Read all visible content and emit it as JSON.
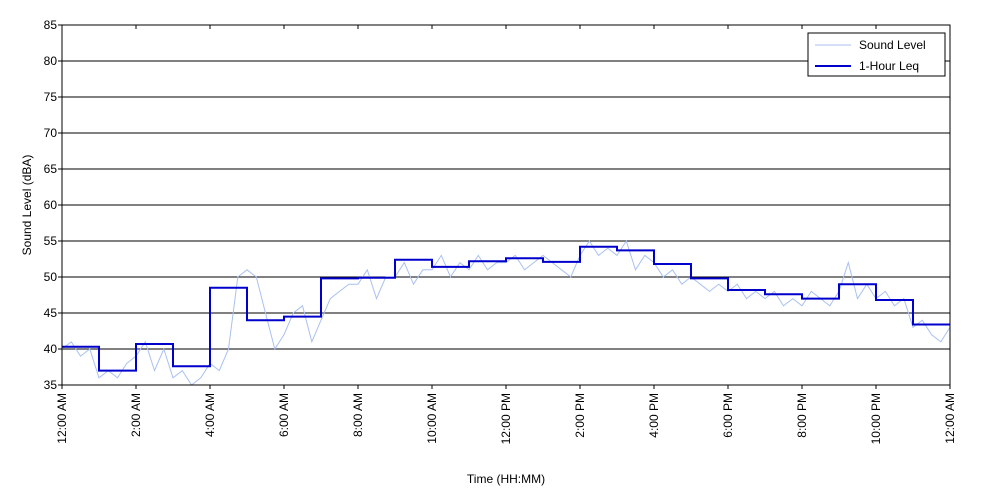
{
  "chart_data": {
    "type": "line",
    "title": "",
    "xlabel": "Time (HH:MM)",
    "ylabel": "Sound Level (dBA)",
    "xlim": [
      0,
      24
    ],
    "ylim": [
      35,
      85
    ],
    "yticks": [
      35,
      40,
      45,
      50,
      55,
      60,
      65,
      70,
      75,
      80,
      85
    ],
    "xticks": [
      {
        "x": 0,
        "label": "12:00 AM"
      },
      {
        "x": 2,
        "label": "2:00 AM"
      },
      {
        "x": 4,
        "label": "4:00 AM"
      },
      {
        "x": 6,
        "label": "6:00 AM"
      },
      {
        "x": 8,
        "label": "8:00 AM"
      },
      {
        "x": 10,
        "label": "10:00 AM"
      },
      {
        "x": 12,
        "label": "12:00 PM"
      },
      {
        "x": 14,
        "label": "2:00 PM"
      },
      {
        "x": 16,
        "label": "4:00 PM"
      },
      {
        "x": 18,
        "label": "6:00 PM"
      },
      {
        "x": 20,
        "label": "8:00 PM"
      },
      {
        "x": 22,
        "label": "10:00 PM"
      },
      {
        "x": 24,
        "label": "12:00 AM"
      }
    ],
    "grid": "horizontal",
    "legend": "top-right",
    "colors": {
      "sound_level": "#a9c1f0",
      "leq": "#0000cc"
    },
    "series": [
      {
        "name": "Sound Level",
        "style": "thin noisy line",
        "x": [
          0,
          0.25,
          0.5,
          0.75,
          1,
          1.25,
          1.5,
          1.75,
          2,
          2.25,
          2.5,
          2.75,
          3,
          3.25,
          3.5,
          3.75,
          4,
          4.25,
          4.5,
          4.75,
          5,
          5.25,
          5.5,
          5.75,
          6,
          6.25,
          6.5,
          6.75,
          7,
          7.25,
          7.5,
          7.75,
          8,
          8.25,
          8.5,
          8.75,
          9,
          9.25,
          9.5,
          9.75,
          10,
          10.25,
          10.5,
          10.75,
          11,
          11.25,
          11.5,
          11.75,
          12,
          12.25,
          12.5,
          12.75,
          13,
          13.25,
          13.5,
          13.75,
          14,
          14.25,
          14.5,
          14.75,
          15,
          15.25,
          15.5,
          15.75,
          16,
          16.25,
          16.5,
          16.75,
          17,
          17.25,
          17.5,
          17.75,
          18,
          18.25,
          18.5,
          18.75,
          19,
          19.25,
          19.5,
          19.75,
          20,
          20.25,
          20.5,
          20.75,
          21,
          21.25,
          21.5,
          21.75,
          22,
          22.25,
          22.5,
          22.75,
          23,
          23.25,
          23.5,
          23.75,
          24
        ],
        "y": [
          40,
          41,
          39,
          40,
          36,
          37,
          36,
          38,
          39,
          41,
          37,
          40,
          36,
          37,
          35,
          36,
          38,
          37,
          40,
          50,
          51,
          50,
          45,
          40,
          42,
          45,
          46,
          41,
          44,
          47,
          48,
          49,
          49,
          51,
          47,
          50,
          50,
          52,
          49,
          51,
          51,
          53,
          50,
          52,
          51,
          53,
          51,
          52,
          52,
          53,
          51,
          52,
          53,
          52,
          51,
          50,
          53,
          55,
          53,
          54,
          53,
          55,
          51,
          53,
          52,
          50,
          51,
          49,
          50,
          49,
          48,
          49,
          48,
          49,
          47,
          48,
          47,
          48,
          46,
          47,
          46,
          48,
          47,
          46,
          48,
          52,
          47,
          49,
          47,
          48,
          46,
          47,
          43,
          44,
          42,
          41,
          43
        ]
      },
      {
        "name": "1-Hour Leq",
        "style": "step",
        "x": [
          0,
          1,
          2,
          3,
          4,
          5,
          6,
          7,
          8,
          9,
          10,
          11,
          12,
          13,
          14,
          15,
          16,
          17,
          18,
          19,
          20,
          21,
          22,
          23
        ],
        "values": [
          40.3,
          37.0,
          40.7,
          37.6,
          48.5,
          44.0,
          44.5,
          49.8,
          49.9,
          52.4,
          51.4,
          52.2,
          52.6,
          52.1,
          54.2,
          53.7,
          51.8,
          49.8,
          48.2,
          47.6,
          47.0,
          49.0,
          46.8,
          43.4
        ]
      }
    ]
  }
}
